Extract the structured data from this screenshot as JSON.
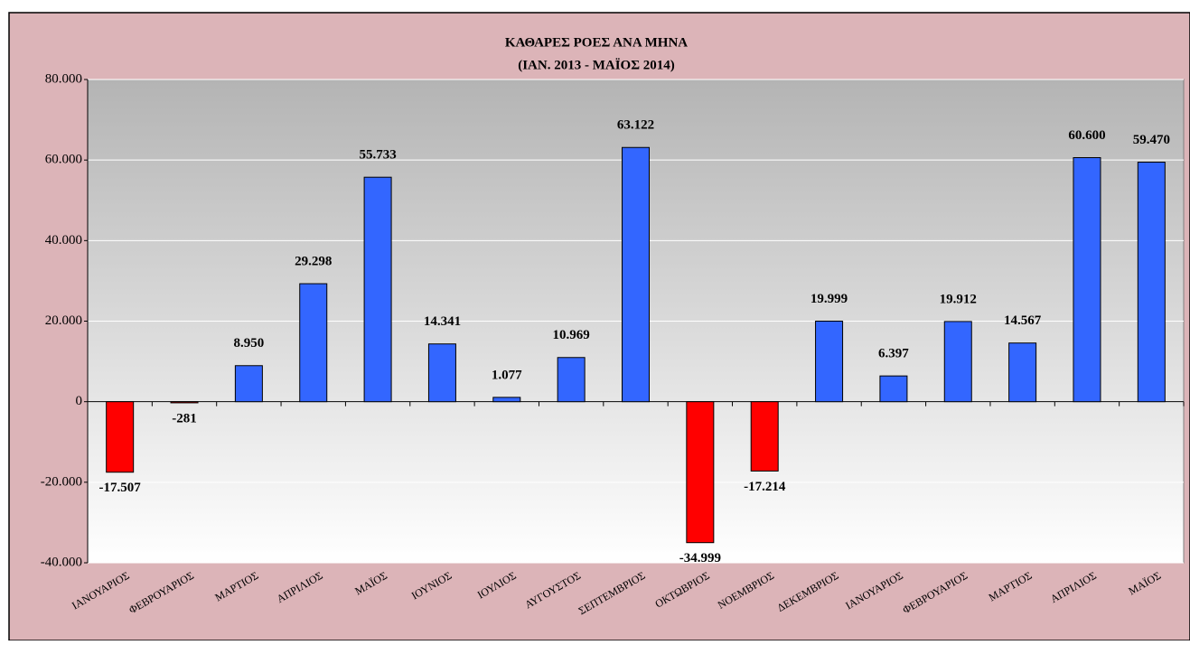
{
  "chart_data": {
    "type": "bar",
    "title": "ΚΑΘΑΡΕΣ ΡΟΕΣ ΑΝΑ ΜΗΝΑ",
    "subtitle": "(ΙΑΝ. 2013 - ΜΑΪΟΣ 2014)",
    "categories": [
      "ΙΑΝΟΥΑΡΙΟΣ",
      "ΦΕΒΡΟΥΑΡΙΟΣ",
      "ΜΑΡΤΙΟΣ",
      "ΑΠΡΙΛΙΟΣ",
      "ΜΑΪΟΣ",
      "ΙΟΥΝΙΟΣ",
      "ΙΟΥΛΙΟΣ",
      "ΑΥΓΟΥΣΤΟΣ",
      "ΣΕΠΤΕΜΒΡΙΟΣ",
      "ΟΚΤΩΒΡΙΟΣ",
      "ΝΟΕΜΒΡΙΟΣ",
      "ΔΕΚΕΜΒΡΙΟΣ",
      "ΙΑΝΟΥΑΡΙΟΣ",
      "ΦΕΒΡΟΥΑΡΙΟΣ",
      "ΜΑΡΤΙΟΣ",
      "ΑΠΡΙΛΙΟΣ",
      "ΜΑΪΟΣ"
    ],
    "values": [
      -17507,
      -281,
      8950,
      29298,
      55733,
      14341,
      1077,
      10969,
      63122,
      -34999,
      -17214,
      19999,
      6397,
      19912,
      14567,
      60600,
      59470
    ],
    "value_labels": [
      "-17.507",
      "-281",
      "8.950",
      "29.298",
      "55.733",
      "14.341",
      "1.077",
      "10.969",
      "63.122",
      "-34.999",
      "-17.214",
      "19.999",
      "6.397",
      "19.912",
      "14.567",
      "60.600",
      "59.470"
    ],
    "color": "#3366ff",
    "negative_color": "#ff0000",
    "ylim": [
      -40000,
      80000
    ],
    "yticks": [
      {
        "value": -40000,
        "label": "-40.000"
      },
      {
        "value": -20000,
        "label": "-20.000"
      },
      0,
      {
        "value": 20000,
        "label": "20.000"
      },
      {
        "value": 40000,
        "label": "40.000"
      },
      {
        "value": 60000,
        "label": "60.000"
      },
      {
        "value": 80000,
        "label": "80.000"
      }
    ],
    "grid": true
  }
}
